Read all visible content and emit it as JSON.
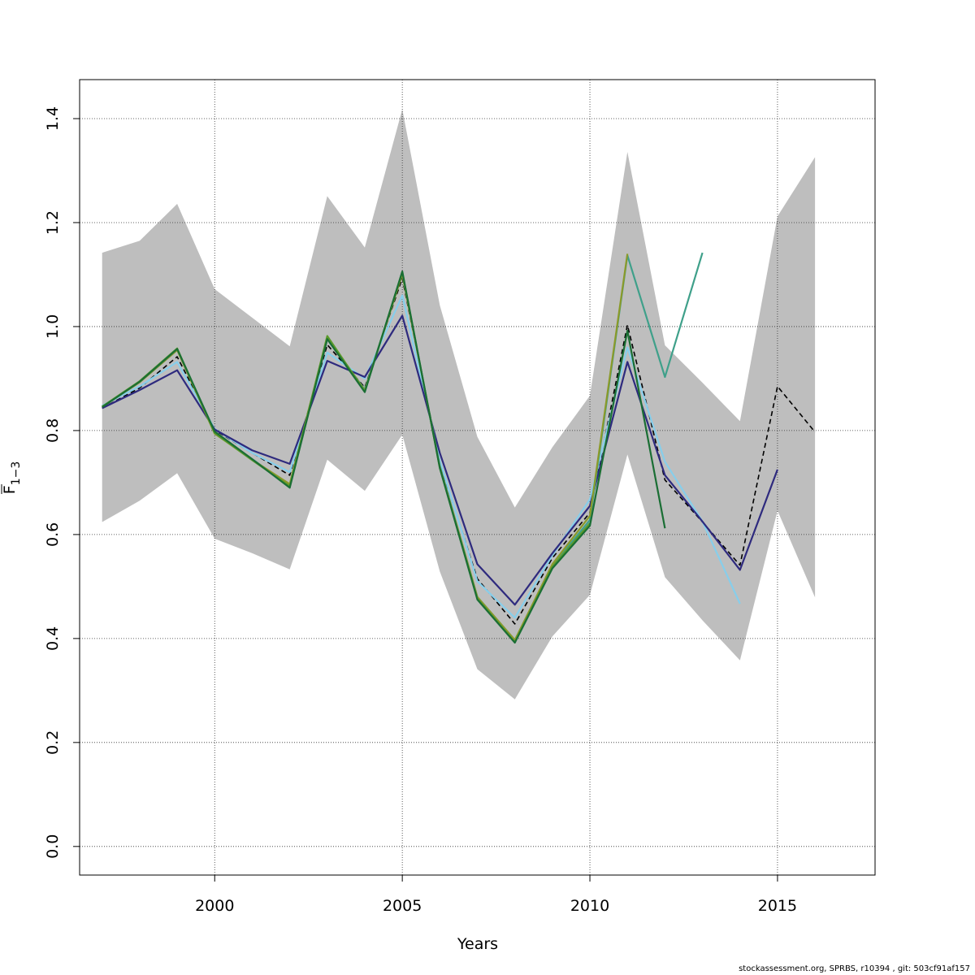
{
  "chart_data": {
    "type": "line",
    "xlabel": "Years",
    "ylabel": "F",
    "ylabel_subscript": "1−3",
    "xlim": [
      1996.4,
      2017.6
    ],
    "ylim": [
      -0.055,
      1.475
    ],
    "xticks": [
      2000,
      2005,
      2010,
      2015
    ],
    "yticks": [
      0.0,
      0.2,
      0.4,
      0.6,
      0.8,
      1.0,
      1.2,
      1.4
    ],
    "ytick_labels": [
      "0.0",
      "0.2",
      "0.4",
      "0.6",
      "0.8",
      "1.0",
      "1.2",
      "1.4"
    ],
    "grid": true,
    "confidence_band": {
      "color": "#bebebe",
      "x": [
        1997,
        1998,
        1999,
        2000,
        2001,
        2002,
        2003,
        2004,
        2005,
        2006,
        2007,
        2008,
        2009,
        2010,
        2011,
        2012,
        2013,
        2014,
        2015,
        2016
      ],
      "upper": [
        1.142,
        1.165,
        1.236,
        1.072,
        1.017,
        0.962,
        1.251,
        1.152,
        1.418,
        1.041,
        0.788,
        0.652,
        0.768,
        0.867,
        1.336,
        0.964,
        0.892,
        0.818,
        1.212,
        1.326
      ],
      "lower": [
        0.624,
        0.665,
        0.718,
        0.592,
        0.564,
        0.533,
        0.744,
        0.684,
        0.792,
        0.529,
        0.341,
        0.283,
        0.404,
        0.484,
        0.754,
        0.518,
        0.435,
        0.358,
        0.646,
        0.479
      ]
    },
    "series": [
      {
        "color": "#000000",
        "dash": "6,4",
        "x": [
          1997,
          1998,
          1999,
          2000,
          2001,
          2002,
          2003,
          2004,
          2005,
          2006,
          2007,
          2008,
          2009,
          2010,
          2011,
          2012,
          2013,
          2014,
          2015,
          2016
        ],
        "values": [
          0.843,
          0.882,
          0.942,
          0.801,
          0.757,
          0.714,
          0.965,
          0.883,
          1.093,
          0.738,
          0.515,
          0.428,
          0.555,
          0.642,
          1.003,
          0.705,
          0.624,
          0.541,
          0.885,
          0.797
        ]
      },
      {
        "color": "#87ceeb",
        "x": [
          1997,
          1998,
          1999,
          2000,
          2001,
          2002,
          2003,
          2004,
          2005,
          2006,
          2007,
          2008,
          2009,
          2010,
          2011,
          2012,
          2013,
          2014
        ],
        "values": [
          0.848,
          0.885,
          0.932,
          0.803,
          0.757,
          0.72,
          0.95,
          0.9,
          1.06,
          0.742,
          0.51,
          0.44,
          0.56,
          0.668,
          0.96,
          0.74,
          0.625,
          0.467
        ]
      },
      {
        "color": "#2e2a7e",
        "x": [
          1997,
          1998,
          1999,
          2000,
          2001,
          2002,
          2003,
          2004,
          2005,
          2006,
          2007,
          2008,
          2009,
          2010,
          2011,
          2012,
          2013,
          2014,
          2015
        ],
        "values": [
          0.843,
          0.878,
          0.916,
          0.802,
          0.762,
          0.736,
          0.934,
          0.903,
          1.021,
          0.757,
          0.543,
          0.465,
          0.564,
          0.655,
          0.932,
          0.714,
          0.625,
          0.532,
          0.725
        ]
      },
      {
        "color": "#3fa08a",
        "x": [
          1997,
          1998,
          1999,
          2000,
          2001,
          2002,
          2003,
          2004,
          2005,
          2006,
          2007,
          2008,
          2009,
          2010,
          2011,
          2012,
          2013
        ],
        "values": [
          0.846,
          0.893,
          0.955,
          0.797,
          0.745,
          0.694,
          0.976,
          0.879,
          1.101,
          0.732,
          0.48,
          0.397,
          0.54,
          0.628,
          1.137,
          0.903,
          1.142
        ]
      },
      {
        "color": "#8a9a2a",
        "x": [
          1997,
          1998,
          1999,
          2000,
          2001,
          2002,
          2003,
          2004,
          2005,
          2006,
          2007,
          2008,
          2009,
          2010,
          2011
        ],
        "values": [
          0.846,
          0.893,
          0.955,
          0.794,
          0.744,
          0.697,
          0.98,
          0.877,
          1.101,
          0.73,
          0.48,
          0.397,
          0.543,
          0.636,
          1.14
        ]
      },
      {
        "color": "#5a9a2a",
        "x": [
          1997,
          1998,
          1999,
          2000,
          2001,
          2002,
          2003,
          2004,
          2005,
          2006,
          2007,
          2008,
          2009,
          2010
        ],
        "values": [
          0.846,
          0.895,
          0.958,
          0.795,
          0.743,
          0.693,
          0.982,
          0.875,
          1.105,
          0.728,
          0.477,
          0.393,
          0.538,
          0.622
        ]
      },
      {
        "color": "#1a6e34",
        "x": [
          1997,
          1998,
          1999,
          2000,
          2001,
          2002,
          2003,
          2004,
          2005,
          2006,
          2007,
          2008,
          2009,
          2010,
          2011,
          2012
        ],
        "values": [
          0.845,
          0.894,
          0.957,
          0.798,
          0.745,
          0.69,
          0.976,
          0.874,
          1.106,
          0.728,
          0.475,
          0.392,
          0.535,
          0.617,
          0.992,
          0.612
        ]
      }
    ]
  },
  "footer": "stockassessment.org, SPRBS, r10394 , git: 503cf91af157"
}
